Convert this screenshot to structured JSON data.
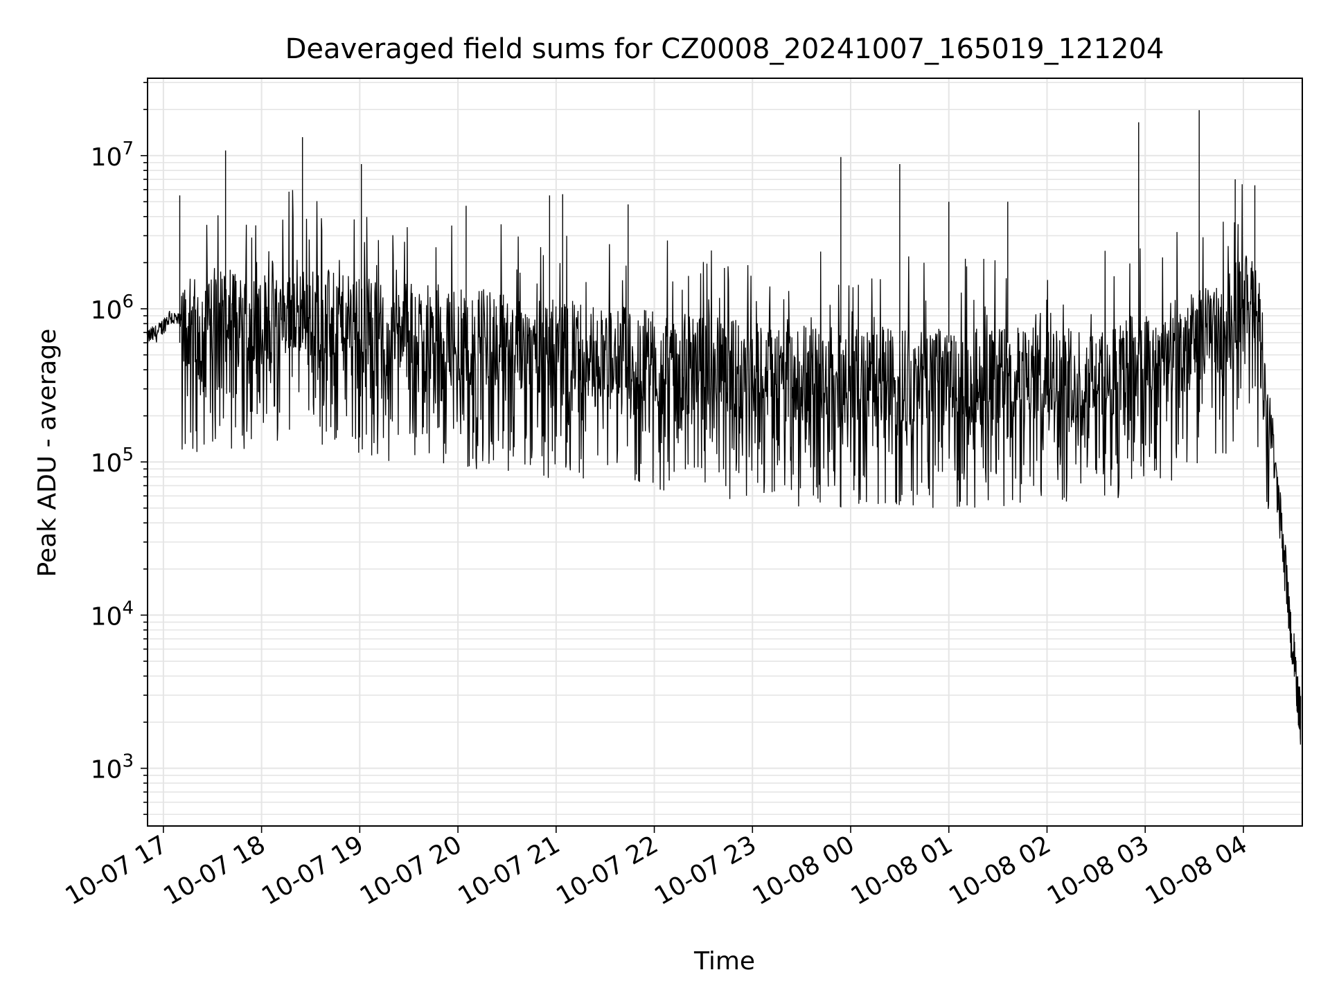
{
  "chart_data": {
    "type": "line",
    "title": "Deaveraged field sums for CZ0008_20241007_165019_121204",
    "xlabel": "Time",
    "ylabel": "Peak ADU - average",
    "yscale": "log",
    "ylim": [
      420,
      32000000
    ],
    "xlim": [
      "2024-10-07 16:50:19",
      "2024-10-08 04:36:00"
    ],
    "grid": true,
    "line_color": "#000000",
    "x_ticks": [
      {
        "time": "2024-10-07 17:00",
        "label": "10-07 17"
      },
      {
        "time": "2024-10-07 18:00",
        "label": "10-07 18"
      },
      {
        "time": "2024-10-07 19:00",
        "label": "10-07 19"
      },
      {
        "time": "2024-10-07 20:00",
        "label": "10-07 20"
      },
      {
        "time": "2024-10-07 21:00",
        "label": "10-07 21"
      },
      {
        "time": "2024-10-07 22:00",
        "label": "10-07 22"
      },
      {
        "time": "2024-10-07 23:00",
        "label": "10-07 23"
      },
      {
        "time": "2024-10-08 00:00",
        "label": "10-08 00"
      },
      {
        "time": "2024-10-08 01:00",
        "label": "10-08 01"
      },
      {
        "time": "2024-10-08 02:00",
        "label": "10-08 02"
      },
      {
        "time": "2024-10-08 03:00",
        "label": "10-08 03"
      },
      {
        "time": "2024-10-08 04:00",
        "label": "10-08 04"
      }
    ],
    "y_ticks": [
      {
        "value": 1000,
        "base": "10",
        "exp": "3"
      },
      {
        "value": 10000,
        "base": "10",
        "exp": "4"
      },
      {
        "value": 100000,
        "base": "10",
        "exp": "5"
      },
      {
        "value": 1000000,
        "base": "10",
        "exp": "6"
      },
      {
        "value": 10000000,
        "base": "10",
        "exp": "7"
      }
    ],
    "series": [
      {
        "x": [
          "2024-10-07 16:50",
          "2024-10-07 16:57",
          "2024-10-07 17:04",
          "2024-10-07 17:11",
          "2024-10-07 17:18",
          "2024-10-07 17:25",
          "2024-10-07 17:32",
          "2024-10-07 17:39",
          "2024-10-07 17:46",
          "2024-10-07 17:53",
          "2024-10-07 18:00",
          "2024-10-07 18:07",
          "2024-10-07 18:14",
          "2024-10-07 18:21",
          "2024-10-07 18:28",
          "2024-10-07 18:35",
          "2024-10-07 18:42",
          "2024-10-07 18:49",
          "2024-10-07 18:56",
          "2024-10-07 19:03",
          "2024-10-07 19:10",
          "2024-10-07 19:17",
          "2024-10-07 19:24",
          "2024-10-07 19:31",
          "2024-10-07 19:38",
          "2024-10-07 19:45",
          "2024-10-07 19:52",
          "2024-10-07 19:59",
          "2024-10-07 20:06",
          "2024-10-07 20:13",
          "2024-10-07 20:20",
          "2024-10-07 20:27",
          "2024-10-07 20:34",
          "2024-10-07 20:41",
          "2024-10-07 20:48",
          "2024-10-07 20:55",
          "2024-10-07 21:02",
          "2024-10-07 21:09",
          "2024-10-07 21:16",
          "2024-10-07 21:23",
          "2024-10-07 21:30",
          "2024-10-07 21:37",
          "2024-10-07 21:44",
          "2024-10-07 21:51",
          "2024-10-07 21:58",
          "2024-10-07 22:05",
          "2024-10-07 22:12",
          "2024-10-07 22:19",
          "2024-10-07 22:26",
          "2024-10-07 22:33",
          "2024-10-07 22:40",
          "2024-10-07 22:47",
          "2024-10-07 22:54",
          "2024-10-07 23:01",
          "2024-10-07 23:08",
          "2024-10-07 23:15",
          "2024-10-07 23:22",
          "2024-10-07 23:29",
          "2024-10-07 23:36",
          "2024-10-07 23:43",
          "2024-10-07 23:50",
          "2024-10-07 23:57",
          "2024-10-08 00:04",
          "2024-10-08 00:11",
          "2024-10-08 00:18",
          "2024-10-08 00:25",
          "2024-10-08 00:32",
          "2024-10-08 00:39",
          "2024-10-08 00:46",
          "2024-10-08 00:53",
          "2024-10-08 01:00",
          "2024-10-08 01:07",
          "2024-10-08 01:14",
          "2024-10-08 01:21",
          "2024-10-08 01:28",
          "2024-10-08 01:35",
          "2024-10-08 01:42",
          "2024-10-08 01:49",
          "2024-10-08 01:56",
          "2024-10-08 02:03",
          "2024-10-08 02:10",
          "2024-10-08 02:17",
          "2024-10-08 02:24",
          "2024-10-08 02:31",
          "2024-10-08 02:38",
          "2024-10-08 02:45",
          "2024-10-08 02:52",
          "2024-10-08 02:59",
          "2024-10-08 03:06",
          "2024-10-08 03:13",
          "2024-10-08 03:20",
          "2024-10-08 03:27",
          "2024-10-08 03:34",
          "2024-10-08 03:41",
          "2024-10-08 03:48",
          "2024-10-08 03:55",
          "2024-10-08 04:02",
          "2024-10-08 04:09",
          "2024-10-08 04:16",
          "2024-10-08 04:23",
          "2024-10-08 04:28",
          "2024-10-08 04:32",
          "2024-10-08 04:35"
        ],
        "y": [
          650000,
          700000,
          900000,
          800000,
          750000,
          850000,
          1000000,
          900000,
          800000,
          950000,
          850000,
          1000000,
          950000,
          1050000,
          1000000,
          900000,
          850000,
          800000,
          780000,
          760000,
          750000,
          740000,
          730000,
          720000,
          700000,
          700000,
          690000,
          680000,
          660000,
          650000,
          640000,
          620000,
          610000,
          600000,
          590000,
          580000,
          560000,
          550000,
          540000,
          530000,
          520000,
          510000,
          500000,
          490000,
          480000,
          470000,
          460000,
          450000,
          440000,
          430000,
          420000,
          410000,
          400000,
          395000,
          390000,
          385000,
          380000,
          378000,
          376000,
          374000,
          372000,
          370000,
          370000,
          368000,
          366000,
          365000,
          364000,
          363000,
          362000,
          361000,
          360000,
          360000,
          360000,
          360000,
          360000,
          362000,
          364000,
          366000,
          368000,
          370000,
          372000,
          375000,
          380000,
          390000,
          400000,
          420000,
          440000,
          460000,
          480000,
          520000,
          560000,
          600000,
          650000,
          700000,
          800000,
          950000,
          1300000,
          900000,
          200000,
          40000,
          10000,
          4000,
          2000
        ],
        "spikes": [
          {
            "x": "2024-10-07 17:10",
            "y": 5500000
          },
          {
            "x": "2024-10-07 17:38",
            "y": 10800000
          },
          {
            "x": "2024-10-07 18:25",
            "y": 13200000
          },
          {
            "x": "2024-10-07 19:01",
            "y": 8800000
          },
          {
            "x": "2024-10-07 20:05",
            "y": 4700000
          },
          {
            "x": "2024-10-07 20:56",
            "y": 5500000
          },
          {
            "x": "2024-10-07 21:04",
            "y": 5600000
          },
          {
            "x": "2024-10-07 21:44",
            "y": 4800000
          },
          {
            "x": "2024-10-07 23:54",
            "y": 9800000
          },
          {
            "x": "2024-10-08 00:30",
            "y": 8800000
          },
          {
            "x": "2024-10-08 01:00",
            "y": 5000000
          },
          {
            "x": "2024-10-08 01:36",
            "y": 5000000
          },
          {
            "x": "2024-10-08 02:56",
            "y": 16500000
          },
          {
            "x": "2024-10-08 03:33",
            "y": 19800000
          },
          {
            "x": "2024-10-08 03:55",
            "y": 7000000
          },
          {
            "x": "2024-10-08 04:07",
            "y": 6400000
          }
        ],
        "band_low": 80000
      }
    ]
  }
}
